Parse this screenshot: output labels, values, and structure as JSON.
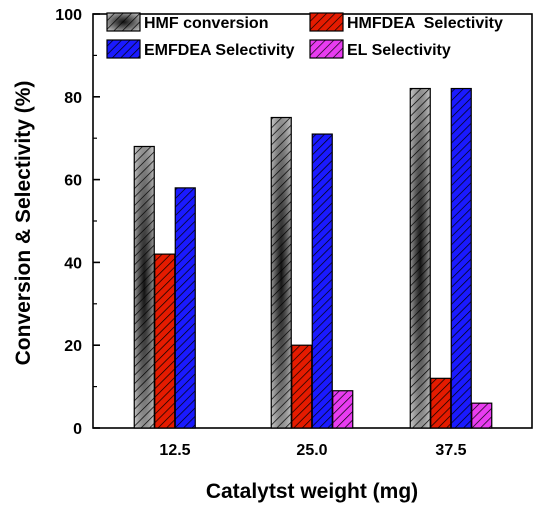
{
  "chart_data": {
    "type": "bar",
    "categories": [
      "12.5",
      "25.0",
      "37.5"
    ],
    "series": [
      {
        "name": "HMF conversion",
        "values": [
          68,
          75,
          82
        ],
        "color": "#7a7a7a",
        "pattern": "hatched-gray-gradient"
      },
      {
        "name": "HMFDEA  Selectivity",
        "values": [
          42,
          20,
          12
        ],
        "color": "#e51b00",
        "pattern": "hatched-red"
      },
      {
        "name": "EMFDEA Selectivity",
        "values": [
          58,
          71,
          82
        ],
        "color": "#1a1aff",
        "pattern": "hatched-blue"
      },
      {
        "name": "EL Selectivity",
        "values": [
          null,
          9,
          6
        ],
        "color": "#e83cf0",
        "pattern": "hatched-magenta"
      }
    ],
    "xlabel": "Catalytst weight (mg)",
    "ylabel": "Conversion & Selectivity (%)",
    "ylim": [
      0,
      100
    ],
    "yticks": [
      0,
      20,
      40,
      60,
      80,
      100
    ],
    "grid": false,
    "legend_position": "top"
  }
}
